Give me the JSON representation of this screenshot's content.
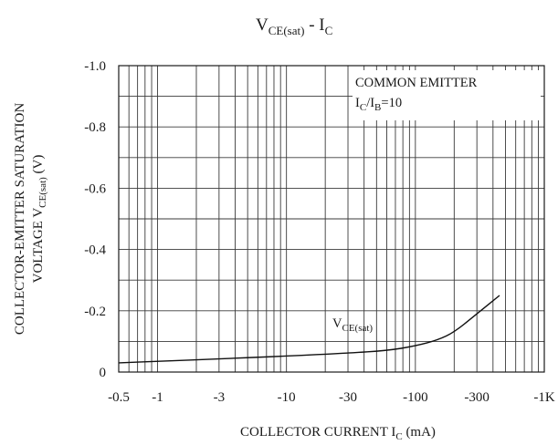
{
  "chart_data": {
    "type": "line",
    "title": {
      "main": "V",
      "sub": "CE(sat)",
      "sep": "  -  ",
      "main2": "I",
      "sub2": "C"
    },
    "xlabel": {
      "main": "COLLECTOR CURRENT I",
      "sub": "C",
      "unit": "  (mA)"
    },
    "ylabel": {
      "line1": "COLLECTOR-EMITTER SATURATION",
      "line2_main": "VOLTAGE V",
      "line2_sub": "CE(sat)",
      "line2_unit": "  (V)"
    },
    "x_scale": "log",
    "xlim": [
      -0.5,
      -1000
    ],
    "ylim": [
      0,
      -1.0
    ],
    "x_ticks": [
      {
        "value": -0.5,
        "label": "-0.5"
      },
      {
        "value": -1,
        "label": "-1"
      },
      {
        "value": -3,
        "label": "-3"
      },
      {
        "value": -10,
        "label": "-10"
      },
      {
        "value": -30,
        "label": "-30"
      },
      {
        "value": -100,
        "label": "-100"
      },
      {
        "value": -300,
        "label": "-300"
      },
      {
        "value": -1000,
        "label": "-1K"
      }
    ],
    "y_ticks": [
      {
        "value": 0,
        "label": "0"
      },
      {
        "value": -0.2,
        "label": "-0.2"
      },
      {
        "value": -0.4,
        "label": "-0.4"
      },
      {
        "value": -0.6,
        "label": "-0.6"
      },
      {
        "value": -0.8,
        "label": "-0.8"
      },
      {
        "value": -1.0,
        "label": "-1.0"
      }
    ],
    "grid": true,
    "annotation": {
      "line1": "COMMON EMITTER",
      "i": "I",
      "c": "C",
      "slash": "/I",
      "b": "B",
      "eq": "=10"
    },
    "series": [
      {
        "label_main": "V",
        "label_sub": "CE(sat)",
        "x": [
          -0.5,
          -1,
          -3,
          -10,
          -30,
          -60,
          -100,
          -150,
          -200,
          -300,
          -450
        ],
        "y": [
          -0.03,
          -0.035,
          -0.043,
          -0.052,
          -0.062,
          -0.07,
          -0.085,
          -0.105,
          -0.13,
          -0.19,
          -0.25
        ]
      }
    ]
  }
}
